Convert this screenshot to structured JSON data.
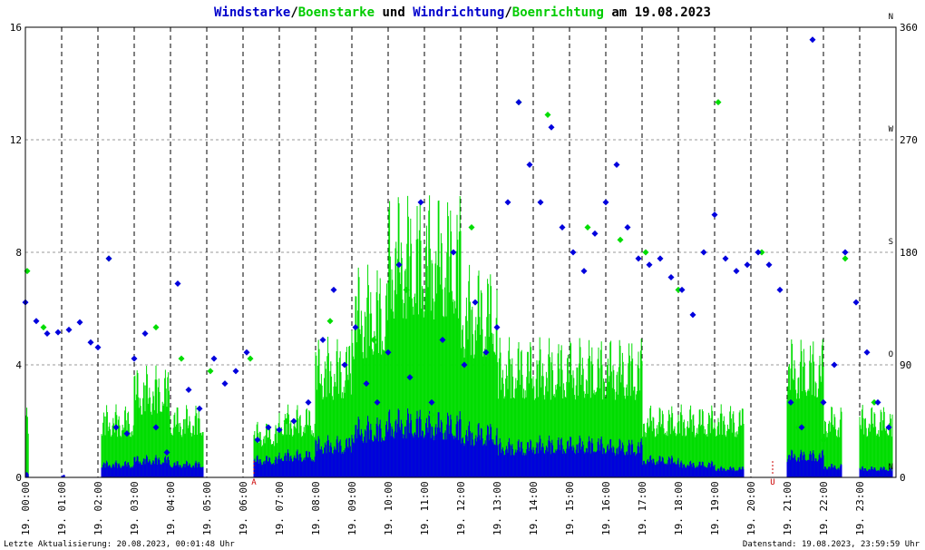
{
  "title": {
    "part1": "Windstarke",
    "sep1": "/",
    "part2": "Boenstarke",
    "part3": " und ",
    "part4": "Windrichtung",
    "sep2": "/",
    "part5": "Boenrichtung",
    "part6": " am 19.08.2023"
  },
  "colors": {
    "wind": "#0000dd",
    "gust": "#00dd00",
    "marker": "#cc0000",
    "grid": "#999999",
    "text": "#000000",
    "title_blue": "#0000cc",
    "title_green": "#00cc00"
  },
  "chart_data": {
    "type": "line",
    "title": "Windstarke/Boenstarke und Windrichtung/Boenrichtung am 19.08.2023",
    "x_hours": [
      0,
      24
    ],
    "y_left": {
      "ticks": [
        0,
        4,
        8,
        12,
        16
      ],
      "range": [
        0,
        16
      ]
    },
    "y_right": {
      "ticks": [
        "0",
        "90",
        "180",
        "270",
        "360"
      ],
      "range": [
        0,
        360
      ],
      "compass": [
        "N",
        "O",
        "S",
        "W",
        "N"
      ]
    },
    "x_tick_labels": [
      {
        "day": "19.",
        "time": "00:00"
      },
      {
        "day": "19.",
        "time": "01:00"
      },
      {
        "day": "19.",
        "time": "02:00"
      },
      {
        "day": "19.",
        "time": "03:00"
      },
      {
        "day": "19.",
        "time": "04:00"
      },
      {
        "day": "19.",
        "time": "05:00"
      },
      {
        "day": "19.",
        "time": "06:00"
      },
      {
        "day": "19.",
        "time": "07:00"
      },
      {
        "day": "19.",
        "time": "08:00"
      },
      {
        "day": "19.",
        "time": "09:00"
      },
      {
        "day": "19.",
        "time": "10:00"
      },
      {
        "day": "19.",
        "time": "11:00"
      },
      {
        "day": "19.",
        "time": "12:00"
      },
      {
        "day": "19.",
        "time": "13:00"
      },
      {
        "day": "19.",
        "time": "14:00"
      },
      {
        "day": "19.",
        "time": "15:00"
      },
      {
        "day": "19.",
        "time": "16:00"
      },
      {
        "day": "19.",
        "time": "17:00"
      },
      {
        "day": "19.",
        "time": "18:00"
      },
      {
        "day": "19.",
        "time": "19:00"
      },
      {
        "day": "19.",
        "time": "20:00"
      },
      {
        "day": "19.",
        "time": "21:00"
      },
      {
        "day": "19.",
        "time": "22:00"
      },
      {
        "day": "19.",
        "time": "23:00"
      }
    ],
    "markers": [
      {
        "label": "A",
        "hour": 6.3
      },
      {
        "label": "U",
        "hour": 20.6
      }
    ],
    "series": [
      {
        "name": "Windstarke",
        "kind": "bars",
        "color": "#0000dd",
        "segments": [
          {
            "from": 0.0,
            "to": 0.1,
            "level": 0.2
          },
          {
            "from": 1.0,
            "to": 1.1,
            "level": 0.1
          },
          {
            "from": 2.1,
            "to": 3.0,
            "level": 0.6
          },
          {
            "from": 3.0,
            "to": 4.0,
            "level": 0.8
          },
          {
            "from": 4.0,
            "to": 4.9,
            "level": 0.6
          },
          {
            "from": 6.3,
            "to": 7.0,
            "level": 0.8
          },
          {
            "from": 7.0,
            "to": 8.0,
            "level": 1.0
          },
          {
            "from": 8.0,
            "to": 9.0,
            "level": 1.5
          },
          {
            "from": 9.0,
            "to": 10.0,
            "level": 2.2
          },
          {
            "from": 10.0,
            "to": 11.0,
            "level": 2.5
          },
          {
            "from": 11.0,
            "to": 12.0,
            "level": 2.4
          },
          {
            "from": 12.0,
            "to": 13.0,
            "level": 2.0
          },
          {
            "from": 13.0,
            "to": 14.0,
            "level": 1.4
          },
          {
            "from": 14.0,
            "to": 15.0,
            "level": 1.5
          },
          {
            "from": 15.0,
            "to": 16.0,
            "level": 1.5
          },
          {
            "from": 16.0,
            "to": 17.0,
            "level": 1.4
          },
          {
            "from": 17.0,
            "to": 18.0,
            "level": 0.8
          },
          {
            "from": 18.0,
            "to": 19.0,
            "level": 0.6
          },
          {
            "from": 19.0,
            "to": 19.8,
            "level": 0.4
          },
          {
            "from": 21.0,
            "to": 22.0,
            "level": 1.0
          },
          {
            "from": 22.0,
            "to": 22.5,
            "level": 0.5
          },
          {
            "from": 23.0,
            "to": 23.9,
            "level": 0.4
          }
        ]
      },
      {
        "name": "Boenstarke",
        "kind": "bars",
        "color": "#00dd00",
        "segments": [
          {
            "from": 0.0,
            "to": 0.1,
            "level": 2.6
          },
          {
            "from": 2.1,
            "to": 3.0,
            "level": 2.6
          },
          {
            "from": 3.0,
            "to": 4.0,
            "level": 4.0
          },
          {
            "from": 4.0,
            "to": 4.9,
            "level": 2.6
          },
          {
            "from": 6.3,
            "to": 7.0,
            "level": 2.0
          },
          {
            "from": 7.0,
            "to": 8.0,
            "level": 2.6
          },
          {
            "from": 8.0,
            "to": 9.0,
            "level": 5.0
          },
          {
            "from": 9.0,
            "to": 10.0,
            "level": 7.6
          },
          {
            "from": 10.0,
            "to": 11.0,
            "level": 10.2
          },
          {
            "from": 11.0,
            "to": 12.0,
            "level": 10.2
          },
          {
            "from": 12.0,
            "to": 13.0,
            "level": 7.6
          },
          {
            "from": 13.0,
            "to": 14.0,
            "level": 5.0
          },
          {
            "from": 14.0,
            "to": 15.0,
            "level": 5.0
          },
          {
            "from": 15.0,
            "to": 16.0,
            "level": 5.0
          },
          {
            "from": 16.0,
            "to": 17.0,
            "level": 5.0
          },
          {
            "from": 17.0,
            "to": 18.0,
            "level": 2.6
          },
          {
            "from": 18.0,
            "to": 19.0,
            "level": 2.6
          },
          {
            "from": 19.0,
            "to": 19.8,
            "level": 2.6
          },
          {
            "from": 21.0,
            "to": 22.0,
            "level": 5.0
          },
          {
            "from": 22.0,
            "to": 22.5,
            "level": 2.6
          },
          {
            "from": 23.0,
            "to": 23.9,
            "level": 2.6
          }
        ]
      },
      {
        "name": "Windrichtung",
        "kind": "points",
        "color": "#0000dd",
        "points": [
          [
            0.0,
            140
          ],
          [
            0.3,
            125
          ],
          [
            0.6,
            115
          ],
          [
            0.9,
            116
          ],
          [
            1.2,
            118
          ],
          [
            1.5,
            124
          ],
          [
            1.8,
            108
          ],
          [
            2.0,
            104
          ],
          [
            2.3,
            175
          ],
          [
            2.5,
            40
          ],
          [
            2.8,
            35
          ],
          [
            3.0,
            95
          ],
          [
            3.3,
            115
          ],
          [
            3.6,
            40
          ],
          [
            3.9,
            20
          ],
          [
            4.2,
            155
          ],
          [
            4.5,
            70
          ],
          [
            4.8,
            55
          ],
          [
            5.2,
            95
          ],
          [
            5.5,
            75
          ],
          [
            5.8,
            85
          ],
          [
            6.1,
            100
          ],
          [
            6.4,
            30
          ],
          [
            6.7,
            40
          ],
          [
            7.0,
            38
          ],
          [
            7.4,
            45
          ],
          [
            7.8,
            60
          ],
          [
            8.2,
            110
          ],
          [
            8.5,
            150
          ],
          [
            8.8,
            90
          ],
          [
            9.1,
            120
          ],
          [
            9.4,
            75
          ],
          [
            9.7,
            60
          ],
          [
            10.0,
            100
          ],
          [
            10.3,
            170
          ],
          [
            10.6,
            80
          ],
          [
            10.9,
            220
          ],
          [
            11.2,
            60
          ],
          [
            11.5,
            110
          ],
          [
            11.8,
            180
          ],
          [
            12.1,
            90
          ],
          [
            12.4,
            140
          ],
          [
            12.7,
            100
          ],
          [
            13.0,
            120
          ],
          [
            13.3,
            220
          ],
          [
            13.6,
            300
          ],
          [
            13.9,
            250
          ],
          [
            14.2,
            220
          ],
          [
            14.5,
            280
          ],
          [
            14.8,
            200
          ],
          [
            15.1,
            180
          ],
          [
            15.4,
            165
          ],
          [
            15.7,
            195
          ],
          [
            16.0,
            220
          ],
          [
            16.3,
            250
          ],
          [
            16.6,
            200
          ],
          [
            16.9,
            175
          ],
          [
            17.2,
            170
          ],
          [
            17.5,
            175
          ],
          [
            17.8,
            160
          ],
          [
            18.1,
            150
          ],
          [
            18.4,
            130
          ],
          [
            18.7,
            180
          ],
          [
            19.0,
            210
          ],
          [
            19.3,
            175
          ],
          [
            19.6,
            165
          ],
          [
            19.9,
            170
          ],
          [
            20.2,
            180
          ],
          [
            20.5,
            170
          ],
          [
            20.8,
            150
          ],
          [
            21.1,
            60
          ],
          [
            21.4,
            40
          ],
          [
            21.7,
            350
          ],
          [
            22.0,
            60
          ],
          [
            22.3,
            90
          ],
          [
            22.6,
            180
          ],
          [
            22.9,
            140
          ],
          [
            23.2,
            100
          ],
          [
            23.5,
            60
          ],
          [
            23.8,
            40
          ]
        ]
      },
      {
        "name": "Boenrichtung",
        "kind": "points",
        "color": "#00dd00",
        "points": [
          [
            0.05,
            165
          ],
          [
            0.5,
            120
          ],
          [
            2.3,
            175
          ],
          [
            3.6,
            120
          ],
          [
            4.3,
            95
          ],
          [
            5.1,
            85
          ],
          [
            6.2,
            95
          ],
          [
            7.2,
            45
          ],
          [
            8.4,
            125
          ],
          [
            9.6,
            110
          ],
          [
            10.5,
            150
          ],
          [
            11.2,
            50
          ],
          [
            12.3,
            200
          ],
          [
            13.6,
            300
          ],
          [
            14.4,
            290
          ],
          [
            15.5,
            200
          ],
          [
            16.4,
            190
          ],
          [
            17.1,
            180
          ],
          [
            18.0,
            150
          ],
          [
            19.1,
            300
          ],
          [
            20.3,
            180
          ],
          [
            21.3,
            40
          ],
          [
            22.0,
            30
          ],
          [
            22.6,
            175
          ],
          [
            23.4,
            60
          ]
        ]
      }
    ],
    "grid": true,
    "legend": "title"
  },
  "footer": {
    "left": "Letzte Aktualisierung: 20.08.2023, 00:01:48 Uhr",
    "right": "Datenstand: 19.08.2023, 23:59:59 Uhr"
  }
}
